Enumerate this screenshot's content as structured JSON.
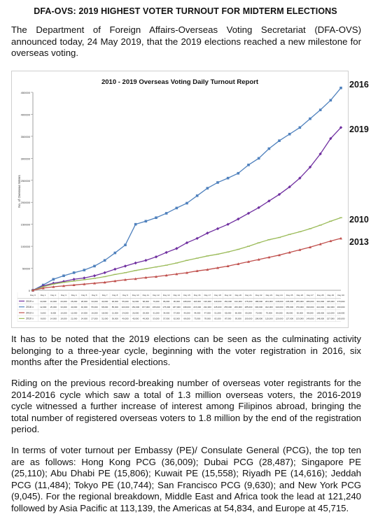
{
  "page": {
    "title": "DFA-OVS: 2019 HIGHEST VOTER TURNOUT FOR MIDTERM ELECTIONS",
    "intro": "The Department of Foreign Affairs-Overseas Voting Secretariat (DFA-OVS) announced today, 24 May 2019, that the 2019 elections reached a new milestone for overseas voting.",
    "paragraphs": [
      "It has to be noted that the 2019 elections can be seen as the culminating activity belonging to a three-year cycle, beginning with the voter registration in 2016, six months after the Presidential elections.",
      "Riding on the previous record-breaking number of overseas voter registrants for the 2014-2016 cycle which saw a total of 1.3 million overseas voters, the 2016-2019 cycle witnessed a further increase of interest among Filipinos abroad, bringing the total number of registered overseas voters to 1.8 million by the end of the registration period.",
      "In terms of voter turnout per Embassy (PE)/ Consulate General (PCG), the top ten are as follows: Hong Kong PCG (36,009); Dubai PCG (28,487); Singapore PE (25,110); Abu Dhabi PE (15,806); Kuwait PE (15,558); Riyadh PE (14,616); Jeddah PCG (11,484); Tokyo PE (10,744); San Francisco PCG (9,630); and New York PCG (9,045). For the regional breakdown, Middle East and Africa took the lead at 121,240 followed by Asia Pacific at 113,139, the Americas at 54,834, and Europe at 45,715."
    ]
  },
  "chart_data": {
    "type": "line",
    "title": "2010 - 2019 Overseas Voting Daily Turnout Report",
    "ylabel": "No. of Overseas Voters",
    "ylim": [
      0,
      450000
    ],
    "yticks": [
      "0",
      "50000",
      "100000",
      "150000",
      "200000",
      "250000",
      "300000",
      "350000",
      "400000",
      "450000"
    ],
    "x": [
      "Day 0",
      "Day 1",
      "Day 2",
      "Day 3",
      "Day 4",
      "Day 5",
      "Day 6",
      "Day 7",
      "Day 8",
      "Day 9",
      "Day 10",
      "Day 11",
      "Day 12",
      "Day 13",
      "Day 14",
      "Day 15",
      "Day 16",
      "Day 17",
      "Day 18",
      "Day 19",
      "Day 20",
      "Day 21",
      "Day 22",
      "Day 23",
      "Day 24",
      "Day 25",
      "Day 26",
      "Day 27",
      "Day 28",
      "Day 29",
      "Day 30"
    ],
    "series": [
      {
        "name": "2016",
        "color": "#4f81bd",
        "values": [
          0,
          12000,
          25000,
          33000,
          40000,
          46000,
          55000,
          68000,
          85000,
          103000,
          150000,
          157000,
          165000,
          175000,
          187000,
          198000,
          215000,
          232000,
          245000,
          255000,
          266000,
          285000,
          300000,
          322000,
          340000,
          355000,
          370000,
          390000,
          410000,
          432000,
          460000
        ]
      },
      {
        "name": "2019",
        "color": "#7030a0",
        "values": [
          0,
          10000,
          16000,
          20000,
          25000,
          28000,
          33000,
          40000,
          48000,
          55000,
          62000,
          68000,
          76000,
          86000,
          95000,
          108000,
          118000,
          130000,
          140000,
          150000,
          162000,
          175000,
          188000,
          203000,
          218000,
          235000,
          255000,
          280000,
          310000,
          345000,
          370000
        ]
      },
      {
        "name": "2010",
        "color": "#9bbb59",
        "values": [
          0,
          8000,
          14000,
          18000,
          21000,
          24000,
          27000,
          31000,
          36000,
          40000,
          45000,
          49000,
          53000,
          57000,
          62000,
          68000,
          73000,
          78000,
          82000,
          87000,
          93000,
          100000,
          108000,
          115000,
          120000,
          127000,
          133000,
          140000,
          148000,
          157000,
          165000
        ]
      },
      {
        "name": "2013",
        "color": "#c0504d",
        "values": [
          0,
          5000,
          8000,
          10000,
          12000,
          14000,
          16000,
          18000,
          21000,
          24000,
          26000,
          29000,
          31000,
          34000,
          37000,
          40000,
          44000,
          47000,
          51000,
          55000,
          60000,
          65000,
          70000,
          75000,
          80000,
          86000,
          92000,
          98000,
          105000,
          112000,
          118000
        ]
      }
    ],
    "grid": false,
    "legend": "table-below"
  }
}
